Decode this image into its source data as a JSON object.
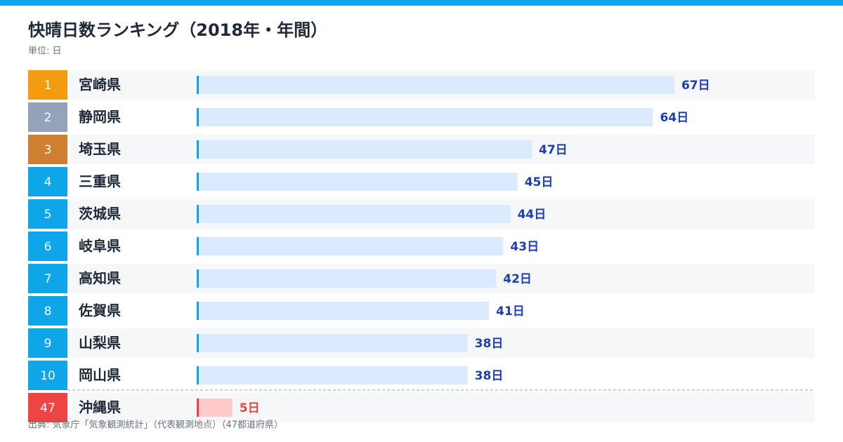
{
  "chart_data": {
    "type": "bar",
    "title": "快晴日数ランキング（2018年・年間）",
    "subtitle": "単位: 日",
    "source": "出典: 気象庁「気象観測統計」（代表観測地点）（47都道府県）",
    "ranks": [
      1,
      2,
      3,
      4,
      5,
      6,
      7,
      8,
      9,
      10,
      47
    ],
    "categories": [
      "宮崎県",
      "静岡県",
      "埼玉県",
      "三重県",
      "茨城県",
      "岐阜県",
      "高知県",
      "佐賀県",
      "山梨県",
      "岡山県",
      "沖縄県"
    ],
    "values": [
      67,
      64,
      47,
      45,
      44,
      43,
      42,
      41,
      38,
      38,
      5
    ],
    "value_labels": [
      "67日",
      "64日",
      "47日",
      "45日",
      "44日",
      "43日",
      "42日",
      "41日",
      "38日",
      "38日",
      "5日"
    ],
    "rank_colors": [
      "#f39c12",
      "#94a3b8",
      "#cd8032",
      "#0ea5e9",
      "#0ea5e9",
      "#0ea5e9",
      "#0ea5e9",
      "#0ea5e9",
      "#0ea5e9",
      "#0ea5e9",
      "#ef4444"
    ],
    "bar_colors": [
      "#dbeafe",
      "#dbeafe",
      "#dbeafe",
      "#dbeafe",
      "#dbeafe",
      "#dbeafe",
      "#dbeafe",
      "#dbeafe",
      "#dbeafe",
      "#dbeafe",
      "#fecaca"
    ],
    "accent_colors": [
      "#0ea5e9",
      "#0ea5e9",
      "#0ea5e9",
      "#0ea5e9",
      "#0ea5e9",
      "#0ea5e9",
      "#0ea5e9",
      "#0ea5e9",
      "#0ea5e9",
      "#0ea5e9",
      "#ef4444"
    ],
    "label_colors": [
      "#1e40af",
      "#1e40af",
      "#1e40af",
      "#1e40af",
      "#1e40af",
      "#1e40af",
      "#1e40af",
      "#1e40af",
      "#1e40af",
      "#1e40af",
      "#ef4444"
    ]
  }
}
